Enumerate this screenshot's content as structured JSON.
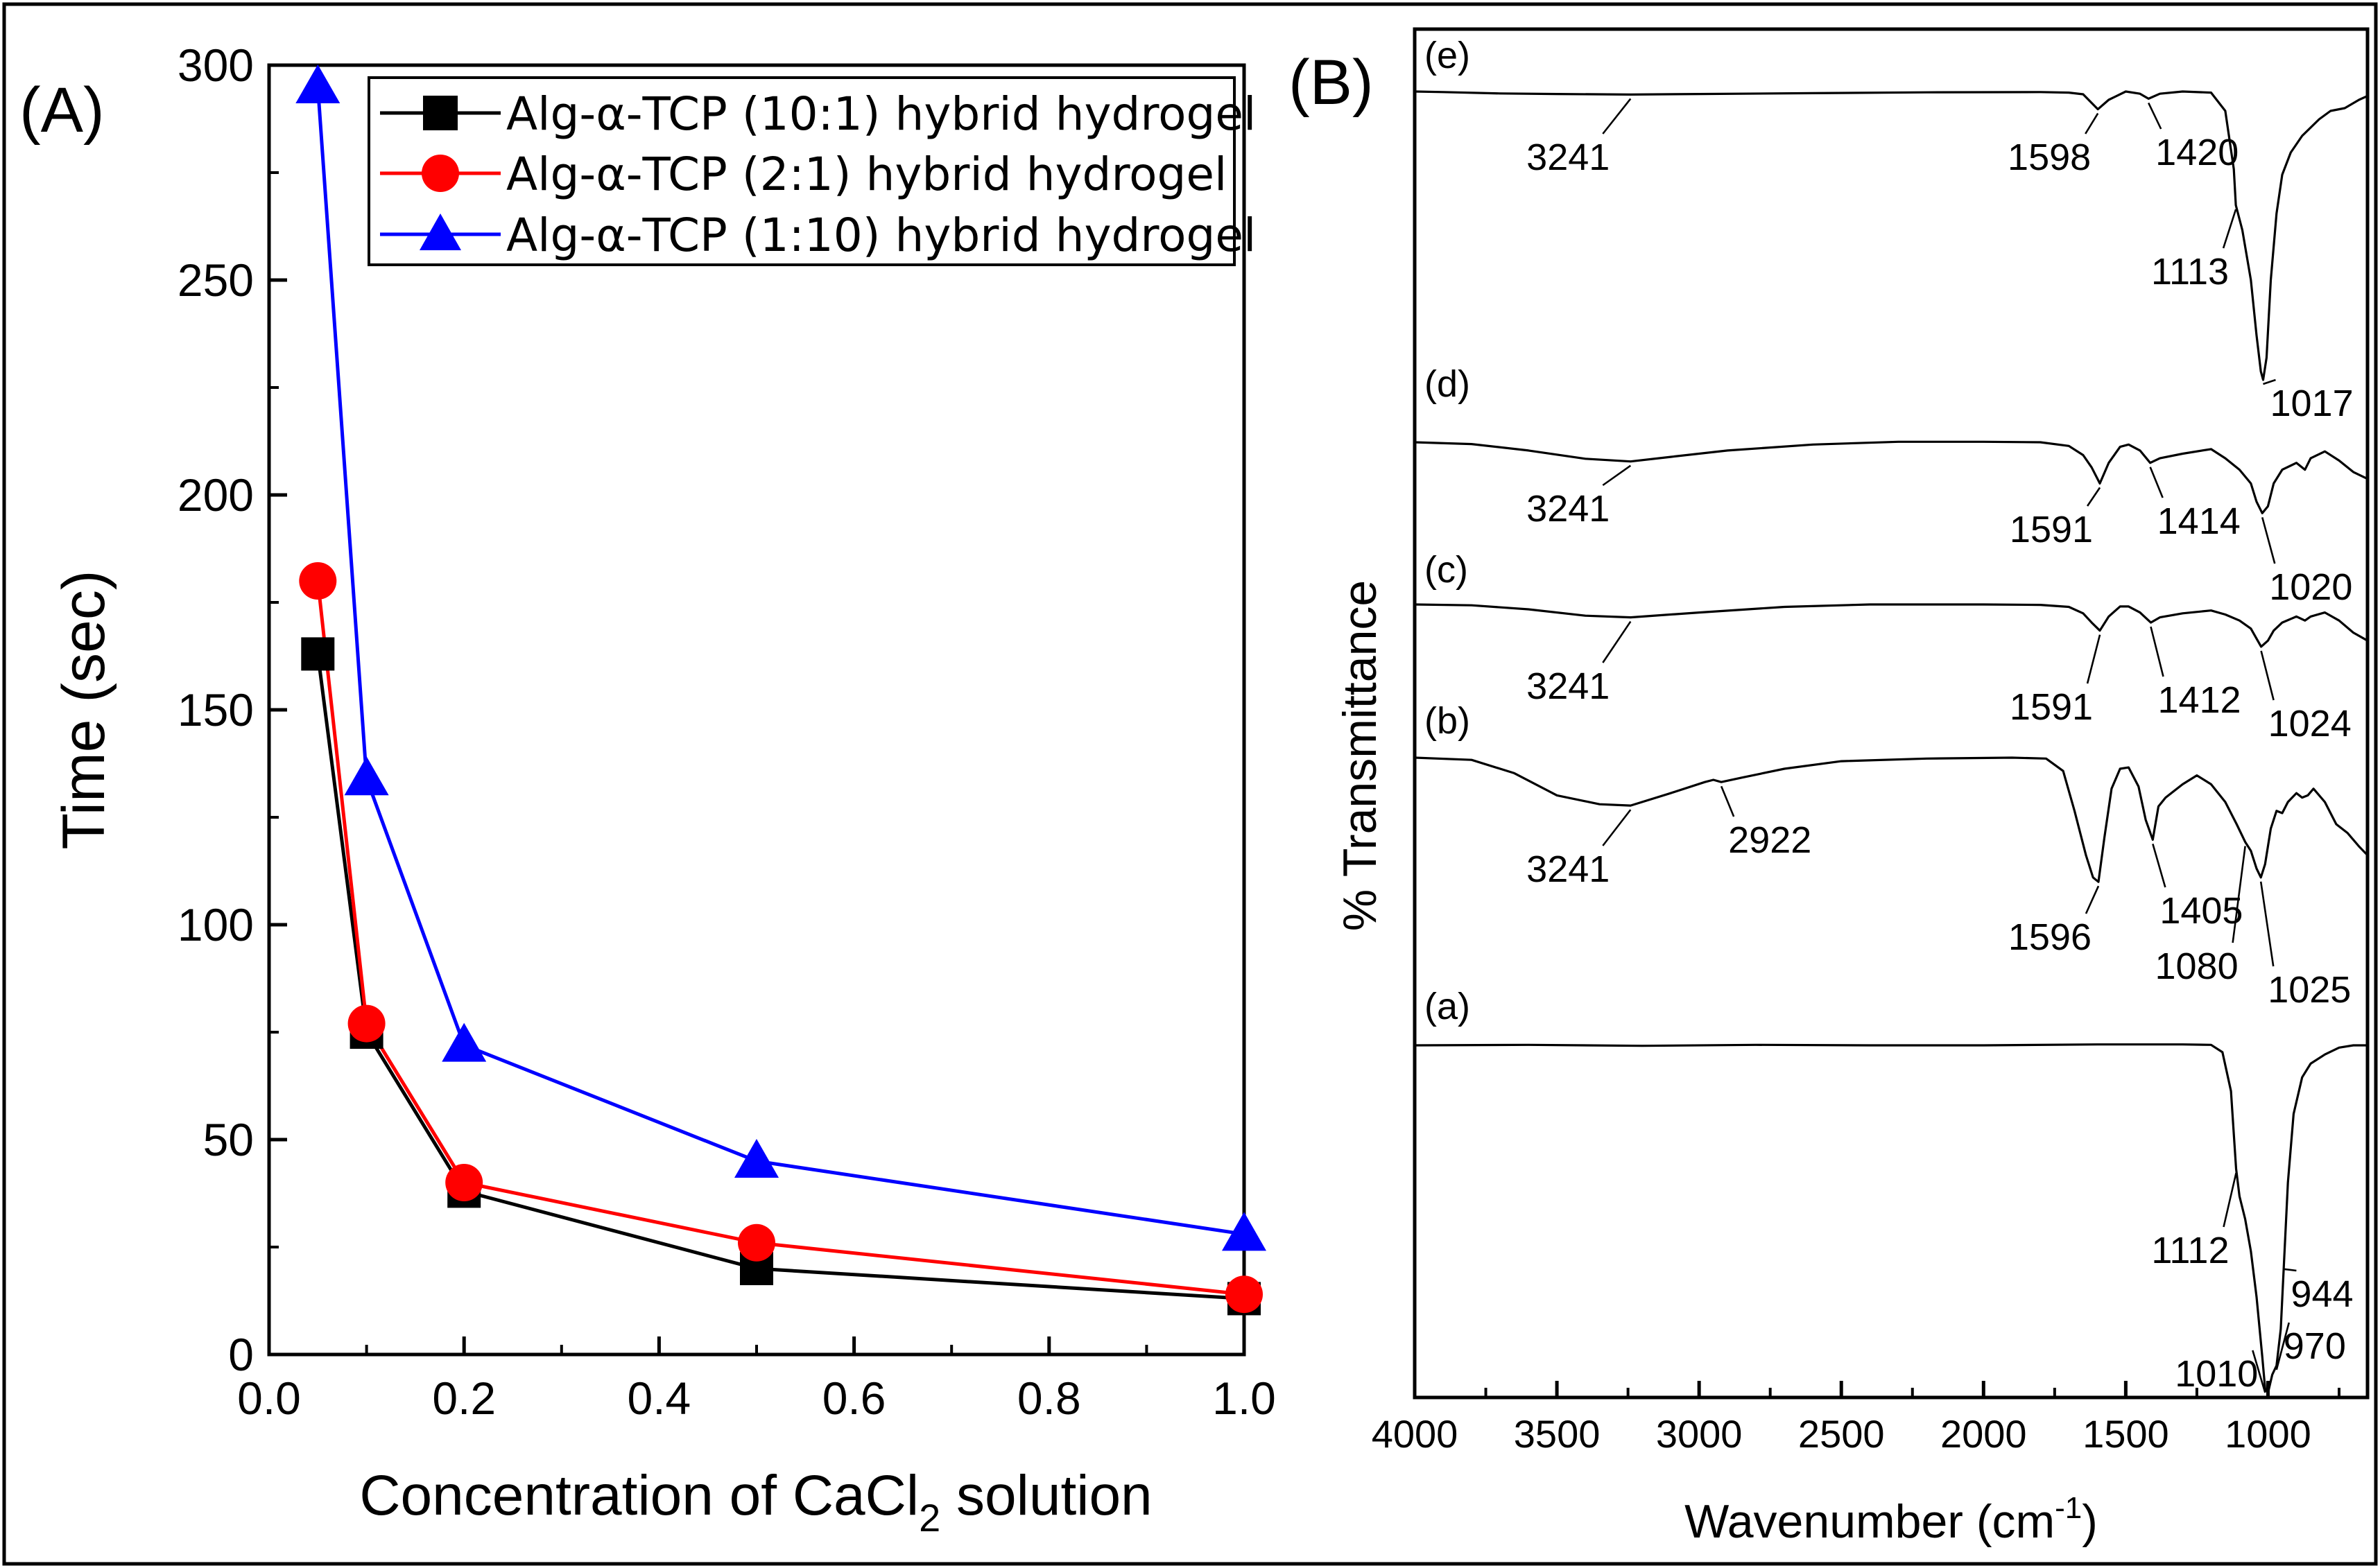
{
  "chart_data": [
    {
      "type": "line",
      "panel_label": "(A)",
      "xlabel": "Concentration of CaCl",
      "xlabel_sub": "2",
      "xlabel_suffix": " solution",
      "ylabel": "Time (sec)",
      "xlim": [
        0.0,
        1.0
      ],
      "ylim": [
        0,
        300
      ],
      "xticks": [
        "0.0",
        "0.2",
        "0.4",
        "0.6",
        "0.8",
        "1.0"
      ],
      "yticks": [
        "0",
        "50",
        "100",
        "150",
        "200",
        "250",
        "300"
      ],
      "x": [
        0.05,
        0.1,
        0.2,
        0.5,
        1.0
      ],
      "legend_position": "top-right",
      "series": [
        {
          "name": "Alg-α-TCP (10:1) hybrid hydrogel",
          "marker": "square",
          "color": "#000000",
          "values": [
            163,
            75,
            38,
            20,
            13
          ]
        },
        {
          "name": "Alg-α-TCP (2:1) hybrid hydrogel",
          "marker": "circle",
          "color": "#ff0000",
          "values": [
            180,
            77,
            40,
            26,
            14
          ]
        },
        {
          "name": "Alg-α-TCP (1:10) hybrid hydrogel",
          "marker": "triangle",
          "color": "#0000ff",
          "values": [
            295,
            134,
            72,
            45,
            28
          ]
        }
      ]
    },
    {
      "type": "line",
      "panel_label": "(B)",
      "xlabel": "Wavenumber (cm",
      "xlabel_sup": "-1",
      "xlabel_suffix": ")",
      "ylabel": "% Transmittance",
      "xlim": [
        4000,
        650
      ],
      "xticks": [
        "4000",
        "3500",
        "3000",
        "2500",
        "2000",
        "1500",
        "1000"
      ],
      "series": [
        {
          "name": "(e)",
          "points": [
            [
              4000,
              0.0
            ],
            [
              3900,
              0.1
            ],
            [
              3700,
              0.35
            ],
            [
              3500,
              0.45
            ],
            [
              3241,
              0.55
            ],
            [
              3000,
              0.45
            ],
            [
              2600,
              0.3
            ],
            [
              2200,
              0.15
            ],
            [
              1800,
              0.1
            ],
            [
              1700,
              0.2
            ],
            [
              1650,
              0.5
            ],
            [
              1598,
              3.2
            ],
            [
              1560,
              1.5
            ],
            [
              1500,
              0.0
            ],
            [
              1450,
              0.4
            ],
            [
              1420,
              1.3
            ],
            [
              1380,
              0.4
            ],
            [
              1300,
              0.0
            ],
            [
              1200,
              0.2
            ],
            [
              1150,
              3.5
            ],
            [
              1120,
              14.0
            ],
            [
              1113,
              20.5
            ],
            [
              1090,
              25.0
            ],
            [
              1060,
              34.0
            ],
            [
              1040,
              44.0
            ],
            [
              1025,
              50.5
            ],
            [
              1017,
              52.0
            ],
            [
              1005,
              48.0
            ],
            [
              990,
              34.0
            ],
            [
              970,
              22.0
            ],
            [
              950,
              15.0
            ],
            [
              920,
              11.0
            ],
            [
              880,
              8.0
            ],
            [
              820,
              5.0
            ],
            [
              780,
              3.5
            ],
            [
              730,
              3.0
            ],
            [
              680,
              1.5
            ],
            [
              650,
              0.8
            ]
          ],
          "annotations": [
            {
              "label": "3241",
              "x": 3241
            },
            {
              "label": "1598",
              "x": 1598
            },
            {
              "label": "1420",
              "x": 1420
            },
            {
              "label": "1113",
              "x": 1113
            },
            {
              "label": "1017",
              "x": 1017
            }
          ]
        },
        {
          "name": "(d)",
          "points": [
            [
              4000,
              0.0
            ],
            [
              3800,
              0.4
            ],
            [
              3600,
              1.8
            ],
            [
              3400,
              3.6
            ],
            [
              3241,
              4.2
            ],
            [
              3100,
              3.2
            ],
            [
              2900,
              1.8
            ],
            [
              2600,
              0.5
            ],
            [
              2300,
              -0.1
            ],
            [
              2000,
              -0.1
            ],
            [
              1800,
              0.0
            ],
            [
              1700,
              0.8
            ],
            [
              1650,
              2.8
            ],
            [
              1620,
              5.5
            ],
            [
              1591,
              9.0
            ],
            [
              1560,
              4.5
            ],
            [
              1520,
              1.0
            ],
            [
              1490,
              0.5
            ],
            [
              1450,
              1.8
            ],
            [
              1414,
              4.5
            ],
            [
              1380,
              3.5
            ],
            [
              1300,
              2.5
            ],
            [
              1200,
              1.5
            ],
            [
              1150,
              3.5
            ],
            [
              1100,
              6.0
            ],
            [
              1060,
              9.0
            ],
            [
              1040,
              13.0
            ],
            [
              1020,
              15.5
            ],
            [
              1000,
              14.0
            ],
            [
              980,
              9.0
            ],
            [
              950,
              6.0
            ],
            [
              900,
              4.5
            ],
            [
              870,
              6.0
            ],
            [
              850,
              3.5
            ],
            [
              800,
              2.0
            ],
            [
              750,
              4.0
            ],
            [
              700,
              6.5
            ],
            [
              650,
              8.0
            ]
          ],
          "annotations": [
            {
              "label": "3241",
              "x": 3241
            },
            {
              "label": "1591",
              "x": 1591
            },
            {
              "label": "1414",
              "x": 1414
            },
            {
              "label": "1020",
              "x": 1020
            }
          ]
        },
        {
          "name": "(c)",
          "points": [
            [
              4000,
              0.0
            ],
            [
              3800,
              0.2
            ],
            [
              3600,
              1.2
            ],
            [
              3400,
              2.8
            ],
            [
              3241,
              3.2
            ],
            [
              3000,
              2.0
            ],
            [
              2700,
              0.6
            ],
            [
              2400,
              0.0
            ],
            [
              2000,
              0.0
            ],
            [
              1800,
              0.1
            ],
            [
              1700,
              0.6
            ],
            [
              1650,
              2.2
            ],
            [
              1620,
              4.5
            ],
            [
              1591,
              6.5
            ],
            [
              1560,
              3.0
            ],
            [
              1520,
              0.5
            ],
            [
              1490,
              0.5
            ],
            [
              1450,
              2.0
            ],
            [
              1412,
              4.5
            ],
            [
              1380,
              3.2
            ],
            [
              1300,
              2.2
            ],
            [
              1200,
              1.5
            ],
            [
              1150,
              2.5
            ],
            [
              1100,
              4.0
            ],
            [
              1060,
              6.0
            ],
            [
              1040,
              8.5
            ],
            [
              1024,
              10.5
            ],
            [
              1000,
              9.0
            ],
            [
              980,
              6.5
            ],
            [
              950,
              4.5
            ],
            [
              900,
              3.0
            ],
            [
              870,
              4.0
            ],
            [
              850,
              3.0
            ],
            [
              800,
              2.0
            ],
            [
              750,
              4.0
            ],
            [
              700,
              7.0
            ],
            [
              650,
              9.0
            ]
          ],
          "annotations": [
            {
              "label": "3241",
              "x": 3241
            },
            {
              "label": "1591",
              "x": 1591
            },
            {
              "label": "1412",
              "x": 1412
            },
            {
              "label": "1024",
              "x": 1024
            }
          ]
        },
        {
          "name": "(b)",
          "points": [
            [
              4000,
              0.0
            ],
            [
              3800,
              0.5
            ],
            [
              3650,
              3.5
            ],
            [
              3500,
              8.5
            ],
            [
              3350,
              10.5
            ],
            [
              3241,
              10.8
            ],
            [
              3100,
              8.0
            ],
            [
              2980,
              5.5
            ],
            [
              2950,
              5.0
            ],
            [
              2922,
              5.5
            ],
            [
              2850,
              4.5
            ],
            [
              2700,
              2.5
            ],
            [
              2500,
              0.8
            ],
            [
              2200,
              0.2
            ],
            [
              1900,
              0.0
            ],
            [
              1780,
              0.2
            ],
            [
              1720,
              3.0
            ],
            [
              1680,
              12.0
            ],
            [
              1640,
              22.0
            ],
            [
              1615,
              27.0
            ],
            [
              1596,
              28.0
            ],
            [
              1575,
              18.0
            ],
            [
              1550,
              7.0
            ],
            [
              1520,
              2.5
            ],
            [
              1490,
              2.2
            ],
            [
              1455,
              6.5
            ],
            [
              1430,
              14.0
            ],
            [
              1405,
              18.5
            ],
            [
              1385,
              11.0
            ],
            [
              1360,
              9.0
            ],
            [
              1300,
              6.0
            ],
            [
              1250,
              4.0
            ],
            [
              1200,
              6.0
            ],
            [
              1150,
              10.0
            ],
            [
              1110,
              15.0
            ],
            [
              1080,
              19.0
            ],
            [
              1060,
              21.0
            ],
            [
              1040,
              25.0
            ],
            [
              1025,
              27.0
            ],
            [
              1010,
              24.0
            ],
            [
              990,
              16.0
            ],
            [
              970,
              12.0
            ],
            [
              950,
              12.5
            ],
            [
              930,
              10.0
            ],
            [
              900,
              8.0
            ],
            [
              880,
              9.0
            ],
            [
              860,
              8.5
            ],
            [
              840,
              7.0
            ],
            [
              800,
              10.0
            ],
            [
              760,
              15.0
            ],
            [
              720,
              17.0
            ],
            [
              680,
              20.0
            ],
            [
              650,
              22.0
            ]
          ],
          "annotations": [
            {
              "label": "3241",
              "x": 3241
            },
            {
              "label": "2922",
              "x": 2922
            },
            {
              "label": "1596",
              "x": 1596
            },
            {
              "label": "1405",
              "x": 1405
            },
            {
              "label": "1080",
              "x": 1080
            },
            {
              "label": "1025",
              "x": 1025
            }
          ]
        },
        {
          "name": "(a)",
          "points": [
            [
              4000,
              0.0
            ],
            [
              3600,
              -0.1
            ],
            [
              3200,
              0.1
            ],
            [
              2800,
              -0.1
            ],
            [
              2400,
              0.0
            ],
            [
              2000,
              0.0
            ],
            [
              1600,
              -0.2
            ],
            [
              1300,
              -0.2
            ],
            [
              1200,
              -0.1
            ],
            [
              1160,
              1.5
            ],
            [
              1130,
              10.0
            ],
            [
              1112,
              27.0
            ],
            [
              1100,
              33.0
            ],
            [
              1080,
              38.0
            ],
            [
              1060,
              45.0
            ],
            [
              1040,
              55.0
            ],
            [
              1020,
              68.0
            ],
            [
              1010,
              75.0
            ],
            [
              1000,
              76.0
            ],
            [
              985,
              72.0
            ],
            [
              970,
              70.0
            ],
            [
              955,
              62.0
            ],
            [
              944,
              48.0
            ],
            [
              930,
              30.0
            ],
            [
              910,
              15.0
            ],
            [
              880,
              7.0
            ],
            [
              850,
              4.0
            ],
            [
              800,
              2.0
            ],
            [
              750,
              0.5
            ],
            [
              700,
              0.0
            ],
            [
              650,
              0.0
            ]
          ],
          "annotations": [
            {
              "label": "1112",
              "x": 1112
            },
            {
              "label": "1010",
              "x": 1010
            },
            {
              "label": "970",
              "x": 970
            },
            {
              "label": "944",
              "x": 944
            }
          ]
        }
      ]
    }
  ]
}
